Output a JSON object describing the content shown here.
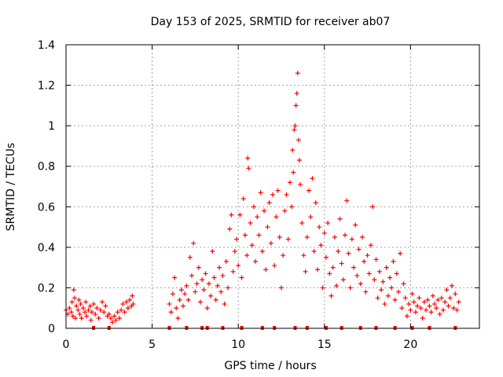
{
  "chart_data": {
    "type": "scatter",
    "title": "Day 153 of 2025, SRMTID for receiver ab07",
    "xlabel": "GPS time / hours",
    "ylabel": "SRMTID / TECUs",
    "xlim": [
      0,
      24
    ],
    "ylim": [
      0,
      1.4
    ],
    "x_ticks": [
      0,
      5,
      10,
      15,
      20
    ],
    "x_tick_labels": [
      "0",
      "5",
      "10",
      "15",
      "20"
    ],
    "y_ticks": [
      0,
      0.2,
      0.4,
      0.6,
      0.8,
      1,
      1.2,
      1.4
    ],
    "y_tick_labels": [
      "0",
      "0.2",
      "0.4",
      "0.6",
      "0.8",
      "1",
      "1.2",
      "1.4"
    ],
    "grid": true,
    "marker": "+",
    "color": "#ff0000",
    "series": [
      {
        "name": "SRMTID",
        "segments": [
          {
            "x_start": 0.0,
            "x_end": 3.9,
            "points": [
              [
                0.0,
                0.09
              ],
              [
                0.1,
                0.07
              ],
              [
                0.2,
                0.1
              ],
              [
                0.3,
                0.08
              ],
              [
                0.35,
                0.13
              ],
              [
                0.4,
                0.06
              ],
              [
                0.45,
                0.19
              ],
              [
                0.5,
                0.15
              ],
              [
                0.55,
                0.05
              ],
              [
                0.6,
                0.11
              ],
              [
                0.7,
                0.09
              ],
              [
                0.75,
                0.14
              ],
              [
                0.8,
                0.07
              ],
              [
                0.85,
                0.12
              ],
              [
                0.9,
                0.05
              ],
              [
                1.0,
                0.1
              ],
              [
                1.1,
                0.08
              ],
              [
                1.15,
                0.13
              ],
              [
                1.2,
                0.06
              ],
              [
                1.3,
                0.09
              ],
              [
                1.4,
                0.11
              ],
              [
                1.45,
                0.04
              ],
              [
                1.5,
                0.08
              ],
              [
                1.6,
                0.12
              ],
              [
                1.7,
                0.07
              ],
              [
                1.8,
                0.1
              ],
              [
                1.9,
                0.05
              ],
              [
                2.0,
                0.09
              ],
              [
                2.1,
                0.13
              ],
              [
                2.2,
                0.08
              ],
              [
                2.3,
                0.11
              ],
              [
                2.4,
                0.06
              ],
              [
                2.5,
                0.07
              ],
              [
                2.6,
                0.05
              ],
              [
                2.7,
                0.03
              ],
              [
                2.8,
                0.06
              ],
              [
                2.9,
                0.04
              ],
              [
                3.0,
                0.08
              ],
              [
                3.1,
                0.05
              ],
              [
                3.2,
                0.09
              ],
              [
                3.3,
                0.12
              ],
              [
                3.4,
                0.08
              ],
              [
                3.5,
                0.13
              ],
              [
                3.6,
                0.1
              ],
              [
                3.7,
                0.14
              ],
              [
                3.8,
                0.11
              ],
              [
                3.85,
                0.16
              ],
              [
                3.9,
                0.12
              ]
            ]
          },
          {
            "x_start": 6.0,
            "x_end": 22.8,
            "points": [
              [
                6.0,
                0.12
              ],
              [
                6.1,
                0.08
              ],
              [
                6.2,
                0.17
              ],
              [
                6.3,
                0.25
              ],
              [
                6.4,
                0.1
              ],
              [
                6.5,
                0.05
              ],
              [
                6.6,
                0.14
              ],
              [
                6.7,
                0.19
              ],
              [
                6.8,
                0.11
              ],
              [
                6.9,
                0.17
              ],
              [
                7.0,
                0.21
              ],
              [
                7.1,
                0.14
              ],
              [
                7.2,
                0.35
              ],
              [
                7.3,
                0.26
              ],
              [
                7.4,
                0.42
              ],
              [
                7.5,
                0.18
              ],
              [
                7.6,
                0.22
              ],
              [
                7.7,
                0.3
              ],
              [
                7.8,
                0.13
              ],
              [
                7.9,
                0.24
              ],
              [
                8.0,
                0.19
              ],
              [
                8.1,
                0.27
              ],
              [
                8.2,
                0.1
              ],
              [
                8.3,
                0.22
              ],
              [
                8.4,
                0.16
              ],
              [
                8.5,
                0.38
              ],
              [
                8.6,
                0.25
              ],
              [
                8.7,
                0.14
              ],
              [
                8.8,
                0.21
              ],
              [
                8.9,
                0.3
              ],
              [
                9.0,
                0.18
              ],
              [
                9.1,
                0.26
              ],
              [
                9.2,
                0.12
              ],
              [
                9.3,
                0.33
              ],
              [
                9.4,
                0.2
              ],
              [
                9.5,
                0.49
              ],
              [
                9.6,
                0.56
              ],
              [
                9.7,
                0.28
              ],
              [
                9.8,
                0.38
              ],
              [
                9.9,
                0.44
              ],
              [
                10.0,
                0.31
              ],
              [
                10.1,
                0.56
              ],
              [
                10.2,
                0.25
              ],
              [
                10.3,
                0.64
              ],
              [
                10.4,
                0.46
              ],
              [
                10.5,
                0.36
              ],
              [
                10.55,
                0.84
              ],
              [
                10.6,
                0.79
              ],
              [
                10.7,
                0.52
              ],
              [
                10.8,
                0.41
              ],
              [
                10.9,
                0.6
              ],
              [
                11.0,
                0.33
              ],
              [
                11.1,
                0.55
              ],
              [
                11.2,
                0.46
              ],
              [
                11.3,
                0.67
              ],
              [
                11.4,
                0.38
              ],
              [
                11.5,
                0.58
              ],
              [
                11.6,
                0.29
              ],
              [
                11.7,
                0.5
              ],
              [
                11.8,
                0.62
              ],
              [
                11.9,
                0.42
              ],
              [
                12.0,
                0.66
              ],
              [
                12.1,
                0.31
              ],
              [
                12.2,
                0.55
              ],
              [
                12.3,
                0.68
              ],
              [
                12.4,
                0.45
              ],
              [
                12.5,
                0.2
              ],
              [
                12.6,
                0.36
              ],
              [
                12.7,
                0.58
              ],
              [
                12.8,
                0.66
              ],
              [
                12.9,
                0.44
              ],
              [
                13.0,
                0.72
              ],
              [
                13.1,
                0.6
              ],
              [
                13.15,
                0.88
              ],
              [
                13.2,
                0.77
              ],
              [
                13.25,
                0.98
              ],
              [
                13.3,
                1.0
              ],
              [
                13.35,
                1.1
              ],
              [
                13.4,
                1.16
              ],
              [
                13.45,
                1.26
              ],
              [
                13.5,
                0.93
              ],
              [
                13.55,
                0.83
              ],
              [
                13.6,
                0.71
              ],
              [
                13.7,
                0.52
              ],
              [
                13.8,
                0.36
              ],
              [
                13.9,
                0.28
              ],
              [
                14.0,
                0.45
              ],
              [
                14.1,
                0.68
              ],
              [
                14.2,
                0.55
              ],
              [
                14.3,
                0.74
              ],
              [
                14.4,
                0.38
              ],
              [
                14.5,
                0.62
              ],
              [
                14.6,
                0.29
              ],
              [
                14.7,
                0.5
              ],
              [
                14.8,
                0.41
              ],
              [
                14.9,
                0.2
              ],
              [
                15.0,
                0.47
              ],
              [
                15.1,
                0.35
              ],
              [
                15.2,
                0.52
              ],
              [
                15.3,
                0.27
              ],
              [
                15.4,
                0.16
              ],
              [
                15.5,
                0.3
              ],
              [
                15.6,
                0.45
              ],
              [
                15.7,
                0.21
              ],
              [
                15.8,
                0.38
              ],
              [
                15.9,
                0.54
              ],
              [
                16.0,
                0.32
              ],
              [
                16.1,
                0.24
              ],
              [
                16.2,
                0.46
              ],
              [
                16.3,
                0.63
              ],
              [
                16.4,
                0.37
              ],
              [
                16.5,
                0.2
              ],
              [
                16.6,
                0.44
              ],
              [
                16.7,
                0.3
              ],
              [
                16.8,
                0.51
              ],
              [
                16.9,
                0.26
              ],
              [
                17.0,
                0.39
              ],
              [
                17.1,
                0.22
              ],
              [
                17.2,
                0.45
              ],
              [
                17.3,
                0.33
              ],
              [
                17.4,
                0.18
              ],
              [
                17.5,
                0.36
              ],
              [
                17.6,
                0.27
              ],
              [
                17.7,
                0.41
              ],
              [
                17.8,
                0.6
              ],
              [
                17.9,
                0.24
              ],
              [
                18.0,
                0.34
              ],
              [
                18.1,
                0.15
              ],
              [
                18.2,
                0.28
              ],
              [
                18.3,
                0.19
              ],
              [
                18.4,
                0.23
              ],
              [
                18.5,
                0.12
              ],
              [
                18.6,
                0.3
              ],
              [
                18.7,
                0.16
              ],
              [
                18.8,
                0.25
              ],
              [
                18.9,
                0.2
              ],
              [
                19.0,
                0.33
              ],
              [
                19.1,
                0.14
              ],
              [
                19.2,
                0.27
              ],
              [
                19.3,
                0.18
              ],
              [
                19.4,
                0.37
              ],
              [
                19.5,
                0.1
              ],
              [
                19.6,
                0.22
              ],
              [
                19.7,
                0.15
              ],
              [
                19.8,
                0.06
              ],
              [
                19.9,
                0.12
              ],
              [
                20.0,
                0.09
              ],
              [
                20.1,
                0.17
              ],
              [
                20.2,
                0.13
              ],
              [
                20.3,
                0.08
              ],
              [
                20.4,
                0.11
              ],
              [
                20.5,
                0.15
              ],
              [
                20.6,
                0.1
              ],
              [
                20.7,
                0.05
              ],
              [
                20.8,
                0.13
              ],
              [
                20.9,
                0.09
              ],
              [
                21.0,
                0.14
              ],
              [
                21.1,
                0.11
              ],
              [
                21.2,
                0.08
              ],
              [
                21.3,
                0.16
              ],
              [
                21.4,
                0.12
              ],
              [
                21.5,
                0.1
              ],
              [
                21.6,
                0.14
              ],
              [
                21.7,
                0.07
              ],
              [
                21.8,
                0.15
              ],
              [
                21.9,
                0.09
              ],
              [
                22.0,
                0.13
              ],
              [
                22.1,
                0.19
              ],
              [
                22.2,
                0.11
              ],
              [
                22.3,
                0.15
              ],
              [
                22.4,
                0.21
              ],
              [
                22.5,
                0.1
              ],
              [
                22.6,
                0.17
              ],
              [
                22.7,
                0.09
              ],
              [
                22.8,
                0.13
              ]
            ]
          }
        ],
        "baseline_markers_x": [
          1.6,
          2.5,
          6.0,
          7.0,
          7.9,
          8.2,
          9.1,
          10.2,
          11.4,
          12.1,
          13.3,
          14.0,
          15.1,
          16.0,
          17.1,
          18.0,
          19.1,
          20.1,
          21.1,
          22.6
        ]
      }
    ]
  }
}
